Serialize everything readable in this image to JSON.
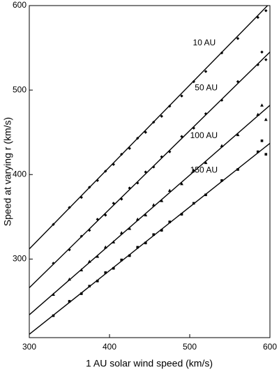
{
  "chart_data": {
    "type": "scatter",
    "xlabel": "1 AU solar wind speed (km/s)",
    "ylabel": "Speed at varying r (km/s)",
    "xlim": [
      300,
      600
    ],
    "ylim": [
      207,
      600
    ],
    "xticks": [
      300,
      400,
      500,
      600
    ],
    "yticks": [
      300,
      400,
      500,
      600
    ],
    "color": "#000000",
    "series": [
      {
        "kind": "points",
        "marker": "diamond",
        "x": [
          330,
          350,
          365,
          375,
          385,
          395,
          405,
          415,
          425,
          435,
          445,
          455,
          465,
          475,
          490,
          505,
          520,
          540,
          560,
          585,
          595
        ],
        "values": [
          341,
          361,
          373,
          385,
          393,
          404,
          412,
          424,
          431,
          443,
          450,
          462,
          469,
          481,
          493,
          510,
          522,
          544,
          561,
          586,
          594
        ]
      },
      {
        "kind": "points",
        "marker": "diamond",
        "x": [
          330,
          350,
          365,
          375,
          385,
          395,
          405,
          415,
          425,
          435,
          445,
          455,
          465,
          475,
          490,
          505,
          520,
          540,
          560,
          585,
          590,
          595
        ],
        "values": [
          295,
          311,
          327,
          334,
          347,
          352,
          366,
          371,
          384,
          390,
          403,
          409,
          421,
          427,
          445,
          455,
          472,
          488,
          510,
          530,
          545,
          536
        ]
      },
      {
        "kind": "points",
        "marker": "triangle",
        "x": [
          330,
          350,
          365,
          375,
          385,
          395,
          405,
          415,
          425,
          435,
          445,
          455,
          465,
          475,
          490,
          505,
          520,
          540,
          560,
          585,
          590,
          595
        ],
        "values": [
          258,
          276,
          287,
          297,
          303,
          314,
          320,
          331,
          336,
          347,
          352,
          364,
          369,
          381,
          389,
          405,
          414,
          434,
          447,
          471,
          482,
          465
        ]
      },
      {
        "kind": "points",
        "marker": "square",
        "x": [
          330,
          350,
          365,
          375,
          385,
          395,
          405,
          415,
          425,
          435,
          445,
          455,
          465,
          475,
          490,
          505,
          520,
          540,
          560,
          585,
          590,
          595
        ],
        "values": [
          233,
          250,
          259,
          268,
          274,
          284,
          289,
          299,
          304,
          314,
          319,
          329,
          334,
          344,
          353,
          366,
          376,
          393,
          406,
          427,
          440,
          424
        ]
      },
      {
        "kind": "line",
        "name": "10 AU",
        "x": [
          300,
          597
        ],
        "values": [
          312,
          600
        ]
      },
      {
        "kind": "line",
        "name": "50 AU",
        "x": [
          300,
          600
        ],
        "values": [
          266,
          545
        ]
      },
      {
        "kind": "line",
        "name": "100 AU",
        "x": [
          300,
          600
        ],
        "values": [
          234,
          482
        ]
      },
      {
        "kind": "line",
        "name": "150 AU",
        "x": [
          300,
          600
        ],
        "values": [
          211,
          437
        ]
      }
    ]
  }
}
